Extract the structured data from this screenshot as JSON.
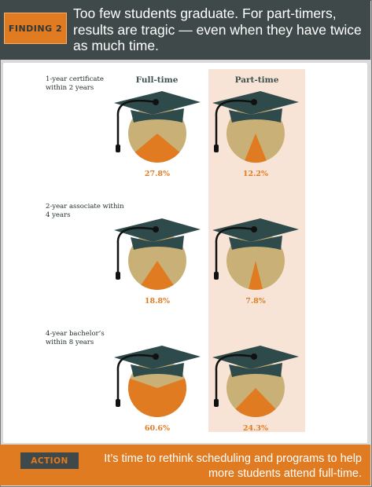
{
  "header": {
    "badge": "FINDING 2",
    "text": "Too few students graduate. For part-timers, results are tragic — even when they have twice as much time."
  },
  "columns": {
    "full_time": "Full-time",
    "part_time": "Part-time"
  },
  "footer": {
    "badge": "ACTION",
    "text": "It’s time to rethink scheduling and programs to help more students attend full-time."
  },
  "colors": {
    "pie_base": "#c9b077",
    "pie_share": "#e07b22",
    "cap": "#2f4a4a",
    "tassel": "#111111",
    "label": "#e07b22",
    "parttime_bg": "#f8e4d6"
  },
  "chart_data": {
    "type": "pie",
    "unit": "%",
    "series": [
      "Full-time",
      "Part-time"
    ],
    "rows": [
      {
        "label": "1-year certificate within 2 years",
        "values": [
          27.8,
          12.2
        ],
        "value_labels": [
          "27.8%",
          "12.2%"
        ]
      },
      {
        "label": "2-year associate within 4 years",
        "values": [
          18.8,
          7.8
        ],
        "value_labels": [
          "18.8%",
          "7.8%"
        ]
      },
      {
        "label": "4-year bachelor’s within 8 years",
        "values": [
          60.6,
          24.3
        ],
        "value_labels": [
          "60.6%",
          "24.3%"
        ]
      }
    ]
  }
}
